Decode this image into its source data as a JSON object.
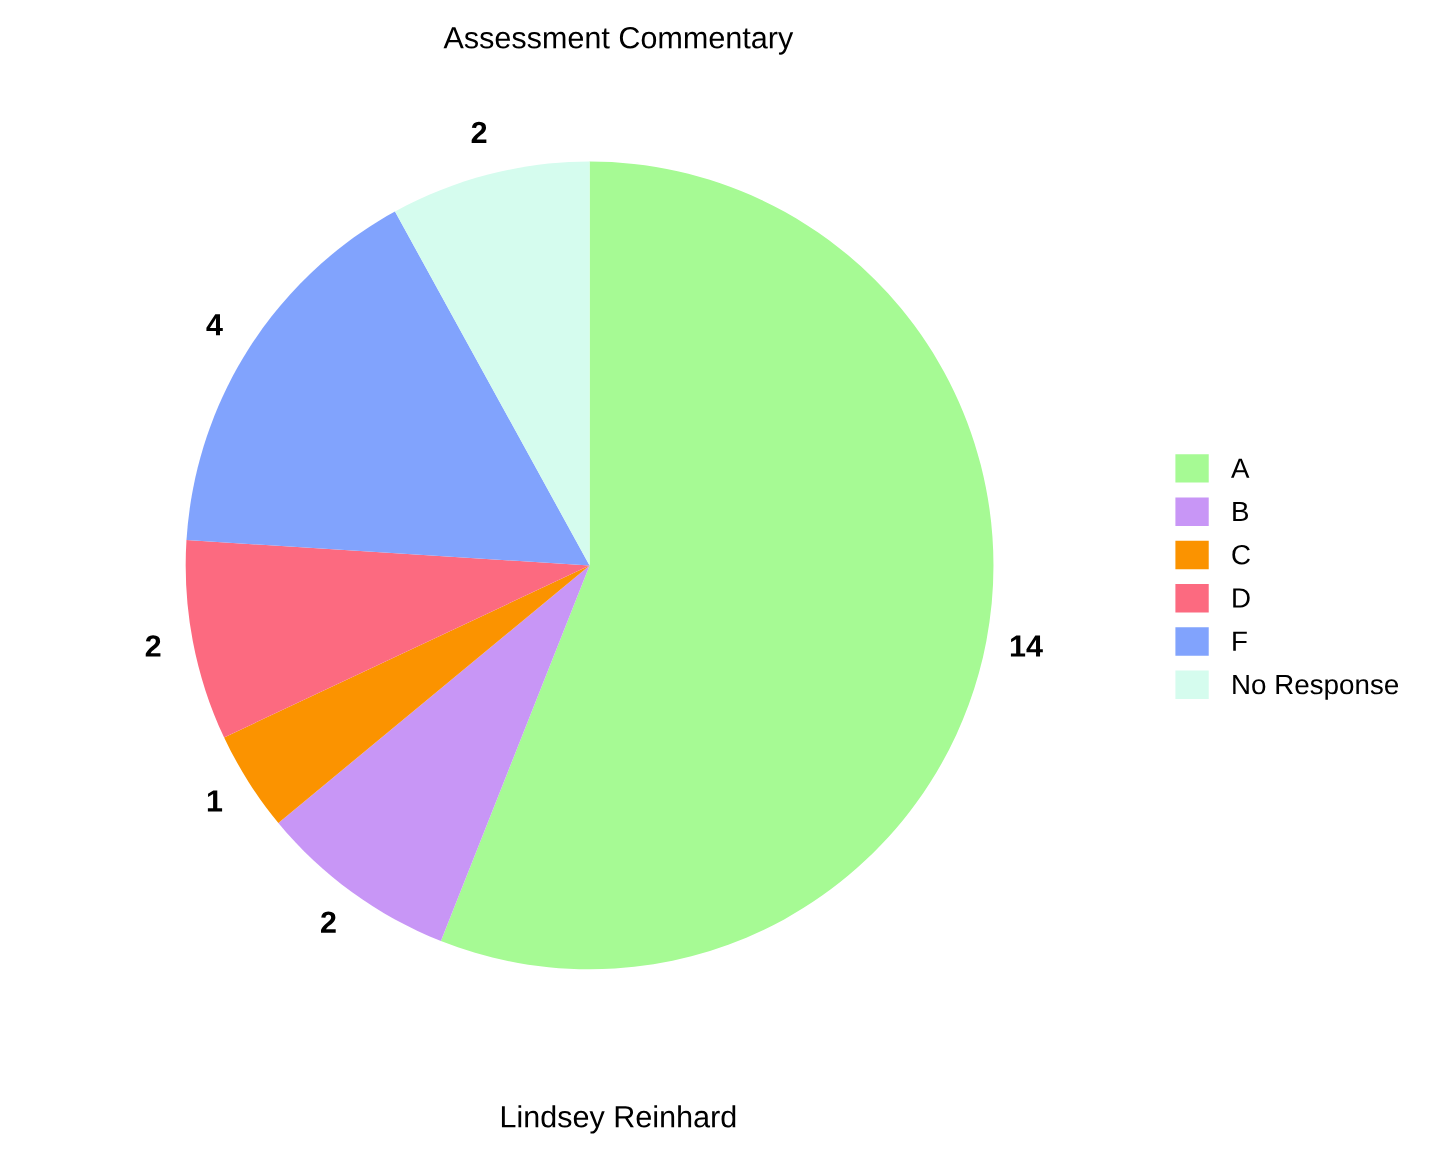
{
  "chart_data": {
    "type": "pie",
    "title": "Assessment Commentary",
    "categories": [
      "A",
      "B",
      "C",
      "D",
      "F",
      "No Response"
    ],
    "values": [
      14,
      2,
      1,
      2,
      4,
      2
    ],
    "colors": [
      "#a6fa94",
      "#c896f6",
      "#fb9300",
      "#fc6a80",
      "#81a3fd",
      "#d5fcee"
    ],
    "data_labels": true,
    "legend": "right",
    "annotations": [
      "Lindsey Reinhard"
    ]
  }
}
